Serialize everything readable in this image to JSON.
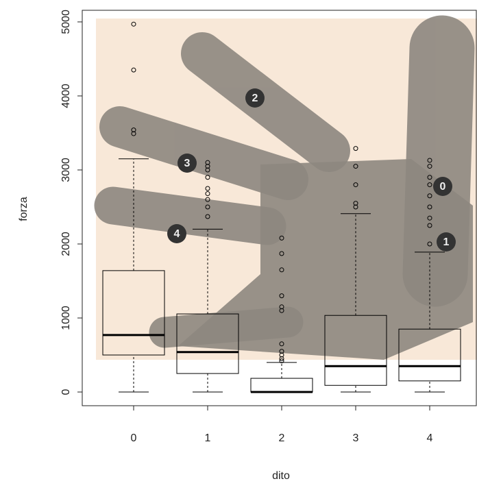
{
  "chart_data": {
    "type": "box",
    "x_label": "dito",
    "y_label": "forza",
    "categories": [
      "0",
      "1",
      "2",
      "3",
      "4"
    ],
    "boxes": [
      {
        "whislo": 0,
        "q1": 500,
        "med": 770,
        "q3": 1640,
        "whishi": 3150,
        "fliers": [
          3490,
          3540,
          4350,
          4970
        ]
      },
      {
        "whislo": 0,
        "q1": 250,
        "med": 540,
        "q3": 1055,
        "whishi": 2200,
        "fliers": [
          2370,
          2500,
          2600,
          2680,
          2750,
          2900,
          3000,
          3050,
          3100
        ]
      },
      {
        "whislo": 0,
        "q1": 0,
        "med": 0,
        "q3": 185,
        "whishi": 400,
        "fliers": [
          420,
          450,
          500,
          550,
          650,
          1100,
          1150,
          1300,
          1650,
          1870,
          2080
        ]
      },
      {
        "whislo": 0,
        "q1": 90,
        "med": 350,
        "q3": 1035,
        "whishi": 2410,
        "fliers": [
          2500,
          2550,
          2800,
          3050,
          3290
        ]
      },
      {
        "whislo": 0,
        "q1": 150,
        "med": 350,
        "q3": 850,
        "whishi": 1890,
        "fliers": [
          2000,
          2250,
          2350,
          2500,
          2650,
          2800,
          2900,
          3050,
          3130
        ]
      }
    ],
    "color": "#000000",
    "ylim": [
      -185,
      5157
    ],
    "yticks": [
      0,
      1000,
      2000,
      3000,
      4000,
      5000
    ],
    "annotations": [
      "2",
      "3",
      "4",
      "0",
      "1"
    ]
  }
}
